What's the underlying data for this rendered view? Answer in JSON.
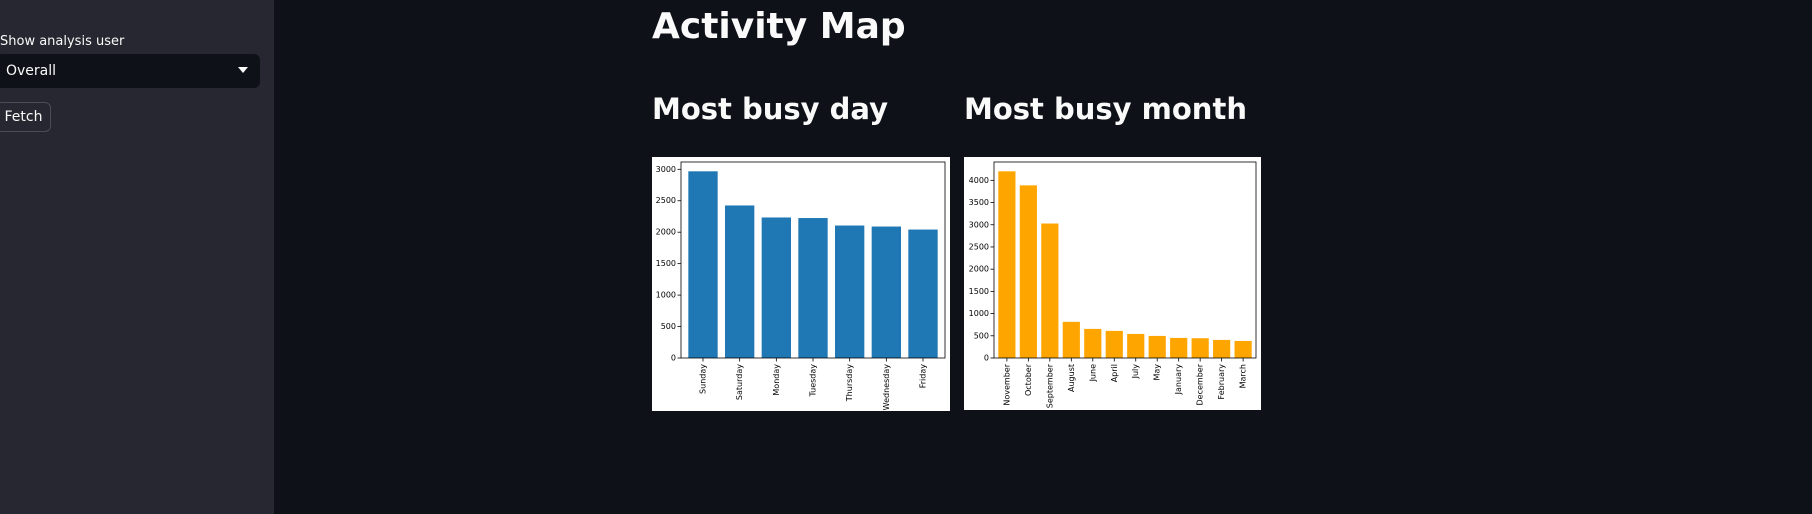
{
  "sidebar": {
    "select_label": "Show analysis user",
    "select_value": "Overall",
    "button": "Fetch"
  },
  "title": "Activity Map",
  "chart_data": [
    {
      "type": "bar",
      "title": "Most busy day",
      "color": "#1f77b4",
      "categories": [
        "Sunday",
        "Saturday",
        "Monday",
        "Tuesday",
        "Thursday",
        "Wednesday",
        "Friday"
      ],
      "values": [
        2968,
        2425,
        2234,
        2225,
        2106,
        2090,
        2042
      ],
      "ylim": [
        0,
        3116
      ],
      "yticks": [
        0,
        500,
        1000,
        1500,
        2000,
        2500,
        3000
      ]
    },
    {
      "type": "bar",
      "title": "Most busy month",
      "color": "#ffa500",
      "categories": [
        "November",
        "October",
        "September",
        "August",
        "June",
        "April",
        "July",
        "May",
        "January",
        "December",
        "February",
        "March"
      ],
      "values": [
        4203,
        3887,
        3028,
        814,
        655,
        610,
        542,
        497,
        452,
        445,
        407,
        384
      ],
      "ylim": [
        0,
        4413
      ],
      "yticks": [
        0,
        500,
        1000,
        1500,
        2000,
        2500,
        3000,
        3500,
        4000
      ]
    }
  ]
}
